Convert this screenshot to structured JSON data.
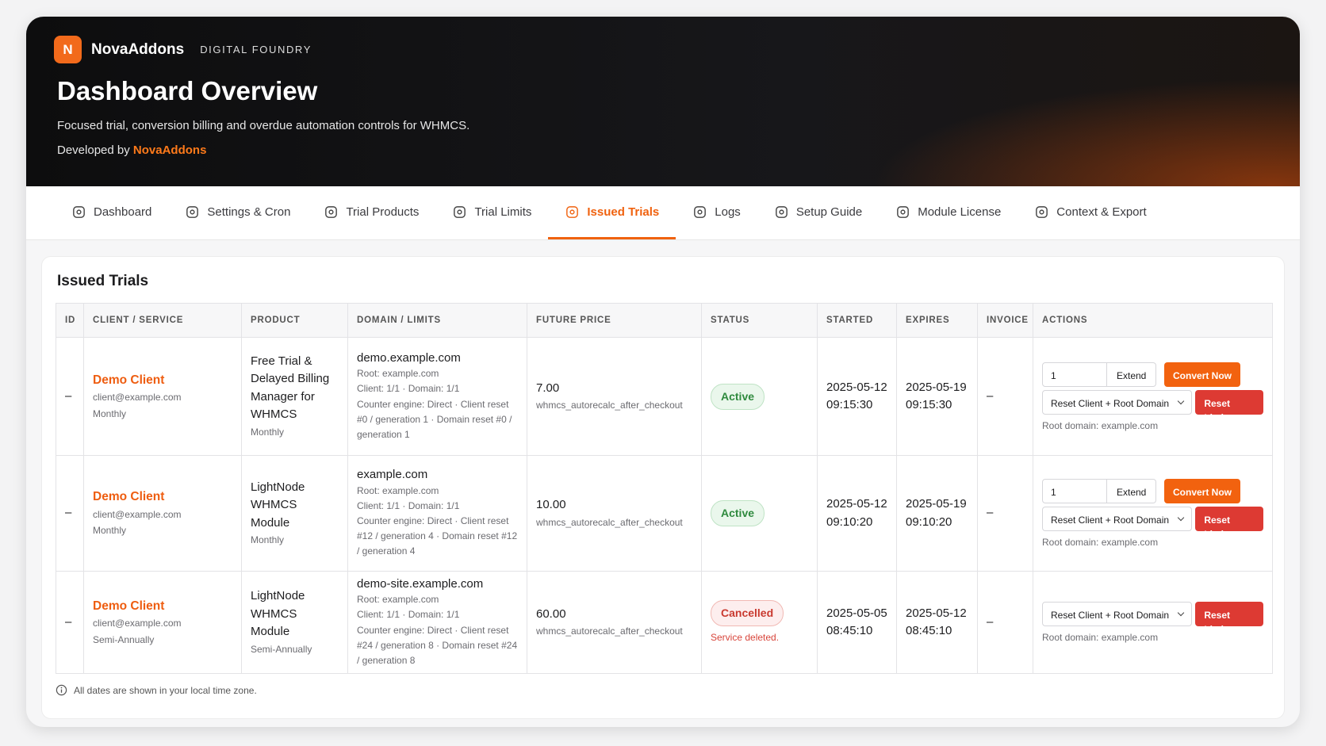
{
  "header": {
    "logo_letter": "N",
    "brand": "NovaAddons",
    "tagline": "DIGITAL FOUNDRY",
    "title": "Dashboard Overview",
    "subtitle": "Focused trial, conversion billing and overdue automation controls for WHMCS.",
    "developed_by": "Developed by",
    "developer": "NovaAddons"
  },
  "tabs": [
    "Dashboard",
    "Settings & Cron",
    "Trial Products",
    "Trial Limits",
    "Issued Trials",
    "Logs",
    "Setup Guide",
    "Module License",
    "Context & Export"
  ],
  "active_tab": 4,
  "panel": {
    "title": "Issued Trials",
    "columns": [
      "ID",
      "CLIENT / SERVICE",
      "PRODUCT",
      "DOMAIN / LIMITS",
      "FUTURE PRICE",
      "STATUS",
      "STARTED",
      "EXPIRES",
      "INVOICE",
      "ACTIONS"
    ],
    "rows": [
      {
        "id": "–",
        "client": "Demo Client",
        "email": "client@example.com",
        "cycle": "Monthly",
        "product": "Free Trial & Delayed Billing Manager for WHMCS",
        "product_cycle": "Monthly",
        "domain": "demo.example.com",
        "domain_details": [
          "Root: example.com",
          "Client: 1/1 · Domain: 1/1",
          "Counter engine: Direct · Client reset #0 / generation 1 · Domain reset #0 / generation 1"
        ],
        "price": "7.00",
        "price_method": "whmcs_autorecalc_after_checkout",
        "status": "Active",
        "status_kind": "active",
        "started": "2025-05-12 09:15:30",
        "expires": "2025-05-19 09:15:30",
        "invoice": "–",
        "actions": {
          "qty": "1",
          "extend": "Extend",
          "convert": "Convert Now",
          "reset_select": "Reset Client + Root Domain",
          "reset": "Reset Limit",
          "root_domain": "Root domain: example.com"
        }
      },
      {
        "id": "–",
        "client": "Demo Client",
        "email": "client@example.com",
        "cycle": "Monthly",
        "product": "LightNode WHMCS Module",
        "product_cycle": "Monthly",
        "domain": "example.com",
        "domain_details": [
          "Root: example.com",
          "Client: 1/1 · Domain: 1/1",
          "Counter engine: Direct · Client reset #12 / generation 4 · Domain reset #12 / generation 4"
        ],
        "price": "10.00",
        "price_method": "whmcs_autorecalc_after_checkout",
        "status": "Active",
        "status_kind": "active",
        "started": "2025-05-12 09:10:20",
        "expires": "2025-05-19 09:10:20",
        "invoice": "–",
        "actions": {
          "qty": "1",
          "extend": "Extend",
          "convert": "Convert Now",
          "reset_select": "Reset Client + Root Domain",
          "reset": "Reset Limit",
          "root_domain": "Root domain: example.com"
        }
      },
      {
        "id": "–",
        "client": "Demo Client",
        "email": "client@example.com",
        "cycle": "Semi-Annually",
        "product": "LightNode WHMCS Module",
        "product_cycle": "Semi-Annually",
        "domain": "demo-site.example.com",
        "domain_details": [
          "Root: example.com",
          "Client: 1/1 · Domain: 1/1",
          "Counter engine: Direct · Client reset #24 / generation 8 · Domain reset #24 / generation 8"
        ],
        "price": "60.00",
        "price_method": "whmcs_autorecalc_after_checkout",
        "status": "Cancelled",
        "status_kind": "cancelled",
        "status_note": "Service deleted.",
        "started": "2025-05-05 08:45:10",
        "expires": "2025-05-12 08:45:10",
        "invoice": "–",
        "actions": {
          "reset_select": "Reset Client + Root Domain",
          "reset": "Reset Limit",
          "root_domain": "Root domain: example.com"
        }
      }
    ],
    "footnote": "All dates are shown in your local time zone."
  }
}
